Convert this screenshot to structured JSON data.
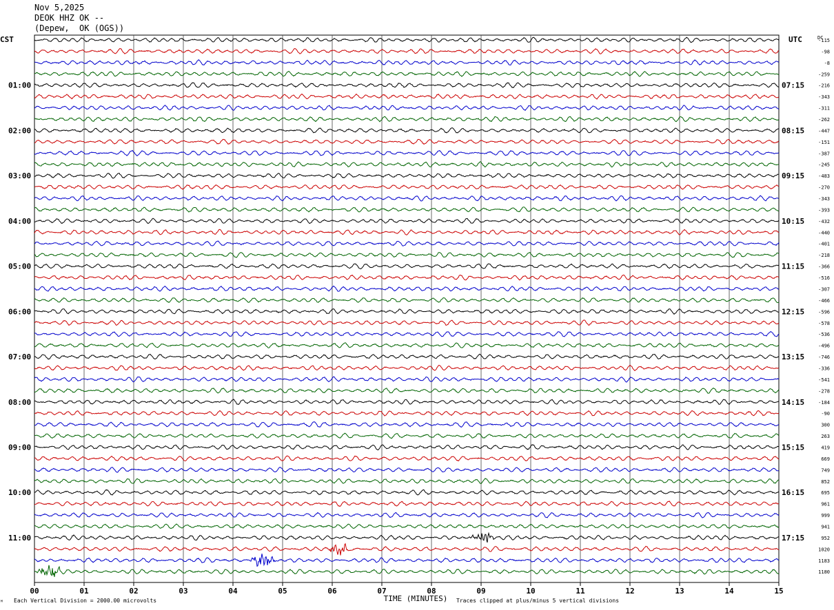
{
  "header": {
    "date": "Nov 5,2025",
    "station": "DEOK HHZ OK --",
    "location": "(Depew,  OK (OGS))"
  },
  "chart_data": {
    "type": "line",
    "left_timezone": "CST",
    "right_timezone": "UTC",
    "dc_label": "DC",
    "xlabel": "TIME (MINUTES)",
    "x_ticks": [
      "00",
      "01",
      "02",
      "03",
      "04",
      "05",
      "06",
      "07",
      "08",
      "09",
      "10",
      "11",
      "12",
      "13",
      "14",
      "15"
    ],
    "xlim": [
      0,
      15
    ],
    "left_hour_labels": [
      "01:00",
      "02:00",
      "03:00",
      "04:00",
      "05:00",
      "06:00",
      "07:00",
      "08:00",
      "09:00",
      "10:00",
      "11:00"
    ],
    "right_hour_labels": [
      "07:15",
      "08:15",
      "09:15",
      "10:15",
      "11:15",
      "12:15",
      "13:15",
      "14:15",
      "15:15",
      "16:15",
      "17:15"
    ],
    "trace_colors": [
      "#000000",
      "#cc0000",
      "#0000cc",
      "#006400"
    ],
    "dc_offsets": [
      -115,
      -98,
      -8,
      -259,
      -216,
      -343,
      -311,
      -262,
      -447,
      -151,
      -387,
      -245,
      -483,
      -270,
      -343,
      -393,
      -432,
      -440,
      -401,
      -218,
      -366,
      -516,
      -307,
      -466,
      -596,
      -578,
      -536,
      -496,
      -746,
      -336,
      -541,
      -278,
      -184,
      -90,
      300,
      263,
      419,
      669,
      749,
      852,
      695,
      961,
      999,
      941,
      952,
      1020,
      1183,
      1180
    ],
    "events": [
      {
        "trace": 44,
        "start_min": 8.75,
        "end_min": 9.3,
        "note": "black"
      },
      {
        "trace": 45,
        "start_min": 5.9,
        "end_min": 6.4,
        "note": "red"
      },
      {
        "trace": 46,
        "start_min": 4.3,
        "end_min": 4.9,
        "note": "blue"
      },
      {
        "trace": 47,
        "start_min": 0.0,
        "end_min": 0.6,
        "note": "green"
      }
    ],
    "scale_note": "Each Vertical Division = 2000.00 microvolts",
    "clip_note": "Traces clipped at plus/minus 5 vertical divisions",
    "grid": true
  }
}
